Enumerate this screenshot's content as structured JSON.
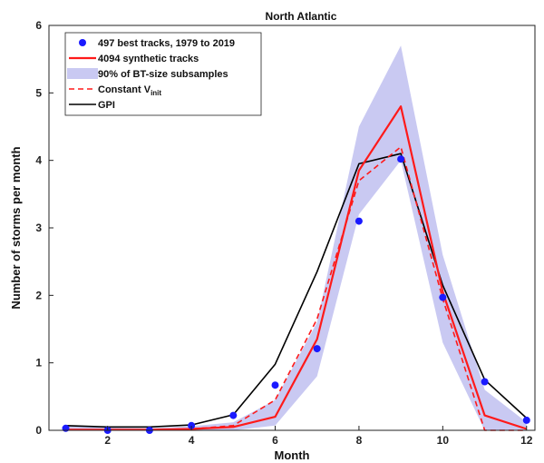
{
  "chart_data": {
    "type": "line",
    "title": "North Atlantic",
    "xlabel": "Month",
    "ylabel": "Number of storms per month",
    "xlim": [
      0.6,
      12.2
    ],
    "ylim": [
      0,
      6
    ],
    "x_ticks": [
      2,
      4,
      6,
      8,
      10,
      12
    ],
    "y_ticks": [
      0,
      1,
      2,
      3,
      4,
      5,
      6
    ],
    "grid": false,
    "legend_position": "top-left",
    "colors": {
      "best_tracks": "#1a1aff",
      "synthetic": "#ff1a1a",
      "band": "#c9c9f2",
      "constant": "#ff1a1a",
      "gpi": "#000000"
    },
    "legend": [
      {
        "key": "best_tracks",
        "label": "497 best tracks, 1979 to 2019"
      },
      {
        "key": "synthetic",
        "label": "4094 synthetic tracks"
      },
      {
        "key": "band",
        "label": "90% of BT-size subsamples"
      },
      {
        "key": "constant",
        "label": "Constant V",
        "label_sub": "init"
      },
      {
        "key": "gpi",
        "label": "GPI"
      }
    ],
    "best_tracks": {
      "x": [
        1,
        2,
        3,
        4,
        5,
        6,
        7,
        8,
        9,
        10,
        11,
        12
      ],
      "y": [
        0.03,
        0.0,
        0.0,
        0.07,
        0.22,
        0.67,
        1.21,
        3.1,
        4.02,
        1.97,
        0.72,
        0.15
      ]
    },
    "synthetic": {
      "x": [
        1,
        2,
        3,
        4,
        5,
        6,
        7,
        8,
        9,
        10,
        11,
        12
      ],
      "y": [
        0.01,
        0.01,
        0.01,
        0.02,
        0.05,
        0.2,
        1.35,
        3.85,
        4.8,
        2.05,
        0.22,
        0.02
      ]
    },
    "band": {
      "x": [
        1,
        2,
        3,
        4,
        5,
        6,
        7,
        8,
        9,
        10,
        11,
        12
      ],
      "low": [
        0,
        0,
        0,
        0,
        0,
        0.07,
        0.8,
        3.2,
        4.0,
        1.3,
        0.0,
        0.0
      ],
      "high": [
        0.07,
        0.04,
        0.03,
        0.06,
        0.12,
        0.45,
        1.6,
        4.5,
        5.7,
        2.6,
        0.6,
        0.12
      ]
    },
    "constant": {
      "x": [
        1,
        2,
        3,
        4,
        5,
        6,
        7,
        8,
        9,
        10,
        11,
        12
      ],
      "y": [
        0.01,
        0.01,
        0.01,
        0.02,
        0.07,
        0.45,
        1.65,
        3.7,
        4.2,
        1.95,
        0.0,
        0.0
      ]
    },
    "gpi": {
      "x": [
        1,
        2,
        3,
        4,
        5,
        6,
        7,
        8,
        9,
        10,
        11,
        12
      ],
      "y": [
        0.07,
        0.05,
        0.05,
        0.08,
        0.23,
        0.98,
        2.35,
        3.95,
        4.1,
        2.15,
        0.75,
        0.18
      ]
    }
  }
}
